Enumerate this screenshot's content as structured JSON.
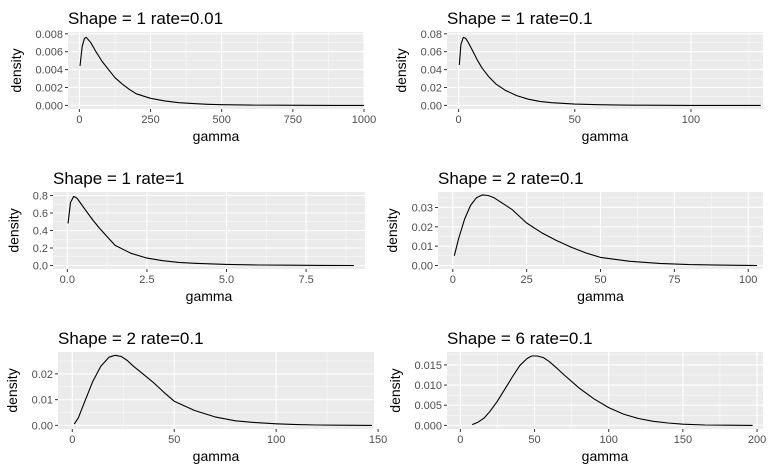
{
  "chart_data": [
    {
      "type": "line",
      "title": "Shape = 1 rate=0.01",
      "xlabel": "gamma",
      "ylabel": "density",
      "xlim": [
        -40,
        1000
      ],
      "ylim": [
        -0.0004,
        0.0082
      ],
      "xticks": [
        0,
        250,
        500,
        750,
        1000
      ],
      "xtick_labels": [
        "0",
        "250",
        "500",
        "750",
        "1000"
      ],
      "yticks": [
        0,
        0.002,
        0.004,
        0.006,
        0.008
      ],
      "ytick_labels": [
        "0.000",
        "0.002",
        "0.004",
        "0.006",
        "0.008"
      ],
      "series": [
        {
          "x": [
            2,
            10,
            18,
            24,
            30,
            40,
            60,
            80,
            100,
            125,
            150,
            175,
            200,
            250,
            300,
            350,
            400,
            450,
            500,
            600,
            700,
            800,
            900,
            1000
          ],
          "y": [
            0.0044,
            0.0066,
            0.0075,
            0.0076,
            0.0074,
            0.007,
            0.0059,
            0.0049,
            0.0041,
            0.0031,
            0.0024,
            0.0018,
            0.0013,
            0.0008,
            0.0005,
            0.0003,
            0.0002,
            0.00012,
            8e-05,
            4e-05,
            2e-05,
            1e-05,
            5e-06,
            0.0
          ]
        }
      ]
    },
    {
      "type": "line",
      "title": "Shape = 1 rate=0.1",
      "xlabel": "gamma",
      "ylabel": "density",
      "xlim": [
        -5,
        131
      ],
      "ylim": [
        -0.004,
        0.082
      ],
      "xticks": [
        0,
        50,
        100
      ],
      "xtick_labels": [
        "0",
        "50",
        "100"
      ],
      "yticks": [
        0,
        0.02,
        0.04,
        0.06,
        0.08
      ],
      "ytick_labels": [
        "0.00",
        "0.02",
        "0.04",
        "0.06",
        "0.08"
      ],
      "series": [
        {
          "x": [
            0.3,
            1,
            2,
            3,
            4,
            6,
            8,
            10,
            13,
            16,
            20,
            25,
            30,
            35,
            40,
            50,
            60,
            70,
            80,
            100,
            120,
            130
          ],
          "y": [
            0.045,
            0.068,
            0.076,
            0.075,
            0.071,
            0.061,
            0.051,
            0.042,
            0.032,
            0.024,
            0.017,
            0.011,
            0.007,
            0.0045,
            0.003,
            0.0015,
            0.0008,
            0.0004,
            0.0002,
            5e-05,
            1e-05,
            0.0
          ]
        }
      ]
    },
    {
      "type": "line",
      "title": "Shape = 1 rate=1",
      "xlabel": "gamma",
      "ylabel": "density",
      "xlim": [
        -0.45,
        9.35
      ],
      "ylim": [
        -0.04,
        0.84
      ],
      "xticks": [
        0,
        2.5,
        5,
        7.5
      ],
      "xtick_labels": [
        "0.0",
        "2.5",
        "5.0",
        "7.5"
      ],
      "yticks": [
        0,
        0.2,
        0.4,
        0.6,
        0.8
      ],
      "ytick_labels": [
        "0.0",
        "0.2",
        "0.4",
        "0.6",
        "0.8"
      ],
      "series": [
        {
          "x": [
            0.02,
            0.1,
            0.2,
            0.3,
            0.4,
            0.6,
            0.8,
            1.0,
            1.25,
            1.5,
            2.0,
            2.5,
            3.0,
            3.5,
            4.0,
            5.0,
            6.0,
            7.0,
            8.0,
            9.0
          ],
          "y": [
            0.48,
            0.72,
            0.79,
            0.77,
            0.72,
            0.62,
            0.52,
            0.43,
            0.33,
            0.23,
            0.14,
            0.085,
            0.055,
            0.036,
            0.025,
            0.012,
            0.006,
            0.003,
            0.0015,
            0.0
          ]
        }
      ]
    },
    {
      "type": "line",
      "title": "Shape = 2 rate=0.1",
      "xlabel": "gamma",
      "ylabel": "density",
      "xlim": [
        -5,
        105
      ],
      "ylim": [
        -0.0018,
        0.038
      ],
      "xticks": [
        0,
        25,
        50,
        75,
        100
      ],
      "xtick_labels": [
        "0",
        "25",
        "50",
        "75",
        "100"
      ],
      "yticks": [
        0,
        0.01,
        0.02,
        0.03
      ],
      "ytick_labels": [
        "0.00",
        "0.01",
        "0.02",
        "0.03"
      ],
      "series": [
        {
          "x": [
            0.5,
            2,
            4,
            6,
            8,
            10,
            12,
            14,
            17,
            20,
            25,
            30,
            35,
            40,
            45,
            50,
            60,
            70,
            80,
            90,
            100,
            103
          ],
          "y": [
            0.005,
            0.014,
            0.024,
            0.031,
            0.035,
            0.0365,
            0.0362,
            0.035,
            0.032,
            0.029,
            0.022,
            0.017,
            0.013,
            0.0095,
            0.0065,
            0.0042,
            0.0022,
            0.0011,
            0.0005,
            0.0002,
            5e-05,
            0.0
          ]
        }
      ]
    },
    {
      "type": "line",
      "title": "Shape = 2 rate=0.1",
      "xlabel": "gamma",
      "ylabel": "density",
      "xlim": [
        -7,
        148
      ],
      "ylim": [
        -0.0014,
        0.0285
      ],
      "xticks": [
        0,
        50,
        100,
        150
      ],
      "xtick_labels": [
        "0",
        "50",
        "100",
        "150"
      ],
      "yticks": [
        0,
        0.01,
        0.02
      ],
      "ytick_labels": [
        "0.00",
        "0.01",
        "0.02"
      ],
      "series": [
        {
          "x": [
            1,
            3,
            6,
            10,
            14,
            18,
            21,
            24,
            27,
            30,
            35,
            40,
            45,
            50,
            60,
            70,
            80,
            90,
            100,
            110,
            120,
            130,
            140,
            147
          ],
          "y": [
            0.0005,
            0.003,
            0.009,
            0.017,
            0.023,
            0.0265,
            0.0272,
            0.0268,
            0.0252,
            0.023,
            0.0198,
            0.0165,
            0.0128,
            0.0094,
            0.0058,
            0.0033,
            0.0018,
            0.0011,
            0.0006,
            0.0003,
            0.00015,
            7e-05,
            2e-05,
            0.0
          ]
        }
      ]
    },
    {
      "type": "line",
      "title": "Shape = 6 rate=0.1",
      "xlabel": "gamma",
      "ylabel": "density",
      "xlim": [
        -9,
        204
      ],
      "ylim": [
        -0.0009,
        0.0182
      ],
      "xticks": [
        0,
        50,
        100,
        150,
        200
      ],
      "xtick_labels": [
        "0",
        "50",
        "100",
        "150",
        "200"
      ],
      "yticks": [
        0,
        0.005,
        0.01,
        0.015
      ],
      "ytick_labels": [
        "0.000",
        "0.005",
        "0.010",
        "0.015"
      ],
      "series": [
        {
          "x": [
            8,
            12,
            16,
            20,
            25,
            30,
            35,
            40,
            45,
            48,
            52,
            56,
            60,
            65,
            70,
            80,
            90,
            100,
            110,
            120,
            130,
            140,
            150,
            165,
            180,
            197
          ],
          "y": [
            0.0002,
            0.0008,
            0.0018,
            0.0035,
            0.006,
            0.009,
            0.012,
            0.0148,
            0.0166,
            0.0172,
            0.0172,
            0.0168,
            0.0158,
            0.0142,
            0.0125,
            0.0093,
            0.0066,
            0.0044,
            0.0028,
            0.0017,
            0.001,
            0.0006,
            0.0003,
            0.0001,
            4e-05,
            0.0
          ]
        }
      ]
    }
  ]
}
